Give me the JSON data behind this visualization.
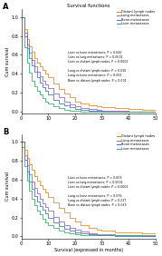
{
  "title": "Survival functions",
  "xlabel": "Survival (expressed in months)",
  "ylabel": "Cum survival",
  "panel_A_label": "A",
  "panel_B_label": "B",
  "legend_entries": [
    "Distant lymph nodes",
    "Lung metastases",
    "Bone metastases",
    "Liver metastases"
  ],
  "colors": {
    "distant_lymph": "#E8820A",
    "lung": "#9B59B6",
    "bone": "#3A6EC8",
    "liver": "#27AE60"
  },
  "panel_A_annotations": [
    "Liver vs bone metastases: P = 0.642",
    "Liver vs lung metastases: P = 0.0001",
    "Liver vs distant lymph nodes: P < 0.0001",
    "",
    "Lung vs distant lymph nodes: P = 0.016",
    "Lung vs bone metastases: P = 0.061",
    "Bone vs distant lymph nodes: P = 0.001"
  ],
  "panel_B_annotations": [
    "Liver vs bone metastases: P = 0.603",
    "Liver vs lung metastases: P < 0.0001",
    "Liver vs distant lymph nodes: P = 0.0001",
    "",
    "Lung vs bone metastases: P = 0.076",
    "Lung vs distant lymph nodes: P = 0.217",
    "Bone vs distant lymph nodes: P = 0.025"
  ],
  "xlim": [
    0,
    50
  ],
  "ylim": [
    -0.02,
    1.08
  ],
  "xticks": [
    0,
    10,
    20,
    30,
    40,
    50
  ],
  "yticks": [
    0.0,
    0.2,
    0.4,
    0.6,
    0.8,
    1.0
  ],
  "panel_A_curves": {
    "distant_lymph": {
      "t": [
        0,
        1,
        2,
        3,
        4,
        5,
        6,
        7,
        8,
        9,
        10,
        12,
        14,
        16,
        18,
        20,
        22,
        25,
        28,
        30,
        35,
        40,
        45,
        50
      ],
      "s": [
        1.0,
        0.87,
        0.77,
        0.69,
        0.63,
        0.57,
        0.52,
        0.48,
        0.44,
        0.4,
        0.36,
        0.3,
        0.24,
        0.19,
        0.15,
        0.11,
        0.09,
        0.07,
        0.06,
        0.05,
        0.04,
        0.03,
        0.02,
        0.01
      ]
    },
    "lung": {
      "t": [
        0,
        1,
        2,
        3,
        4,
        5,
        6,
        7,
        8,
        9,
        10,
        12,
        14,
        16,
        18,
        20,
        22,
        25,
        28,
        30,
        35,
        40,
        45,
        50
      ],
      "s": [
        1.0,
        0.83,
        0.71,
        0.62,
        0.55,
        0.48,
        0.42,
        0.37,
        0.33,
        0.29,
        0.25,
        0.19,
        0.15,
        0.11,
        0.08,
        0.06,
        0.04,
        0.03,
        0.02,
        0.01,
        0.01,
        0.0,
        0.0,
        0.0
      ]
    },
    "bone": {
      "t": [
        0,
        1,
        2,
        3,
        4,
        5,
        6,
        7,
        8,
        9,
        10,
        12,
        14,
        16,
        18,
        20,
        22,
        25,
        28,
        30,
        35,
        40,
        45,
        50
      ],
      "s": [
        1.0,
        0.8,
        0.67,
        0.57,
        0.49,
        0.42,
        0.36,
        0.31,
        0.26,
        0.22,
        0.18,
        0.13,
        0.09,
        0.07,
        0.05,
        0.03,
        0.02,
        0.01,
        0.01,
        0.0,
        0.0,
        0.0,
        0.0,
        0.0
      ]
    },
    "liver": {
      "t": [
        0,
        1,
        2,
        3,
        4,
        5,
        6,
        7,
        8,
        9,
        10,
        12,
        14,
        16,
        18,
        20,
        22,
        25,
        28,
        30,
        35,
        40,
        45,
        50
      ],
      "s": [
        1.0,
        0.68,
        0.52,
        0.41,
        0.33,
        0.27,
        0.22,
        0.18,
        0.14,
        0.11,
        0.09,
        0.06,
        0.04,
        0.02,
        0.01,
        0.01,
        0.0,
        0.0,
        0.0,
        0.0,
        0.0,
        0.0,
        0.0,
        0.0
      ]
    }
  },
  "panel_B_curves": {
    "distant_lymph": {
      "t": [
        0,
        1,
        2,
        3,
        4,
        5,
        6,
        7,
        8,
        9,
        10,
        12,
        14,
        16,
        18,
        20,
        22,
        25,
        28,
        30,
        35,
        40,
        45,
        50
      ],
      "s": [
        1.0,
        0.91,
        0.83,
        0.76,
        0.7,
        0.64,
        0.59,
        0.54,
        0.5,
        0.46,
        0.42,
        0.36,
        0.3,
        0.25,
        0.2,
        0.16,
        0.12,
        0.09,
        0.07,
        0.06,
        0.04,
        0.04,
        0.03,
        0.03
      ]
    },
    "lung": {
      "t": [
        0,
        1,
        2,
        3,
        4,
        5,
        6,
        7,
        8,
        9,
        10,
        12,
        14,
        16,
        18,
        20,
        22,
        25,
        28,
        30,
        35,
        40,
        45,
        50
      ],
      "s": [
        1.0,
        0.86,
        0.75,
        0.66,
        0.58,
        0.51,
        0.45,
        0.4,
        0.35,
        0.31,
        0.27,
        0.21,
        0.16,
        0.12,
        0.09,
        0.07,
        0.05,
        0.03,
        0.02,
        0.02,
        0.01,
        0.01,
        0.0,
        0.0
      ]
    },
    "bone": {
      "t": [
        0,
        1,
        2,
        3,
        4,
        5,
        6,
        7,
        8,
        9,
        10,
        12,
        14,
        16,
        18,
        20,
        22,
        25,
        28,
        30,
        35,
        40,
        45,
        50
      ],
      "s": [
        1.0,
        0.81,
        0.68,
        0.58,
        0.5,
        0.43,
        0.37,
        0.32,
        0.28,
        0.24,
        0.2,
        0.15,
        0.11,
        0.08,
        0.06,
        0.04,
        0.03,
        0.02,
        0.01,
        0.01,
        0.0,
        0.0,
        0.0,
        0.0
      ]
    },
    "liver": {
      "t": [
        0,
        1,
        2,
        3,
        4,
        5,
        6,
        7,
        8,
        9,
        10,
        12,
        14,
        16,
        18,
        20,
        22,
        25,
        28,
        30,
        35,
        40,
        45,
        50
      ],
      "s": [
        0.94,
        0.74,
        0.59,
        0.48,
        0.4,
        0.33,
        0.27,
        0.23,
        0.19,
        0.15,
        0.12,
        0.09,
        0.06,
        0.04,
        0.03,
        0.02,
        0.01,
        0.01,
        0.01,
        0.01,
        0.01,
        0.01,
        0.01,
        0.01
      ]
    }
  }
}
